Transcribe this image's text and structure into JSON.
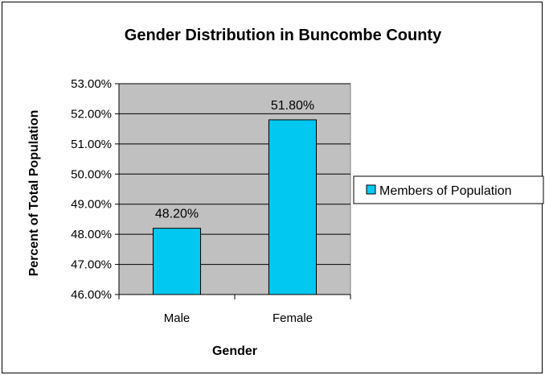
{
  "chart_data": {
    "type": "bar",
    "title": "Gender Distribution in Buncombe County",
    "xlabel": "Gender",
    "ylabel": "Percent of Total Population",
    "categories": [
      "Male",
      "Female"
    ],
    "series": [
      {
        "name": "Members of Population",
        "values": [
          48.2,
          51.8
        ],
        "data_labels": [
          "48.20%",
          "51.80%"
        ]
      }
    ],
    "ylim": [
      46,
      53
    ],
    "yticks": [
      46,
      47,
      48,
      49,
      50,
      51,
      52,
      53
    ],
    "ytick_labels": [
      "46.00%",
      "47.00%",
      "48.00%",
      "49.00%",
      "50.00%",
      "51.00%",
      "52.00%",
      "53.00%"
    ],
    "grid": true,
    "legend_position": "right",
    "colors": {
      "bar": "#00c8f0",
      "plot_background": "#c0c0c0",
      "bar_outline": "#000000"
    }
  }
}
